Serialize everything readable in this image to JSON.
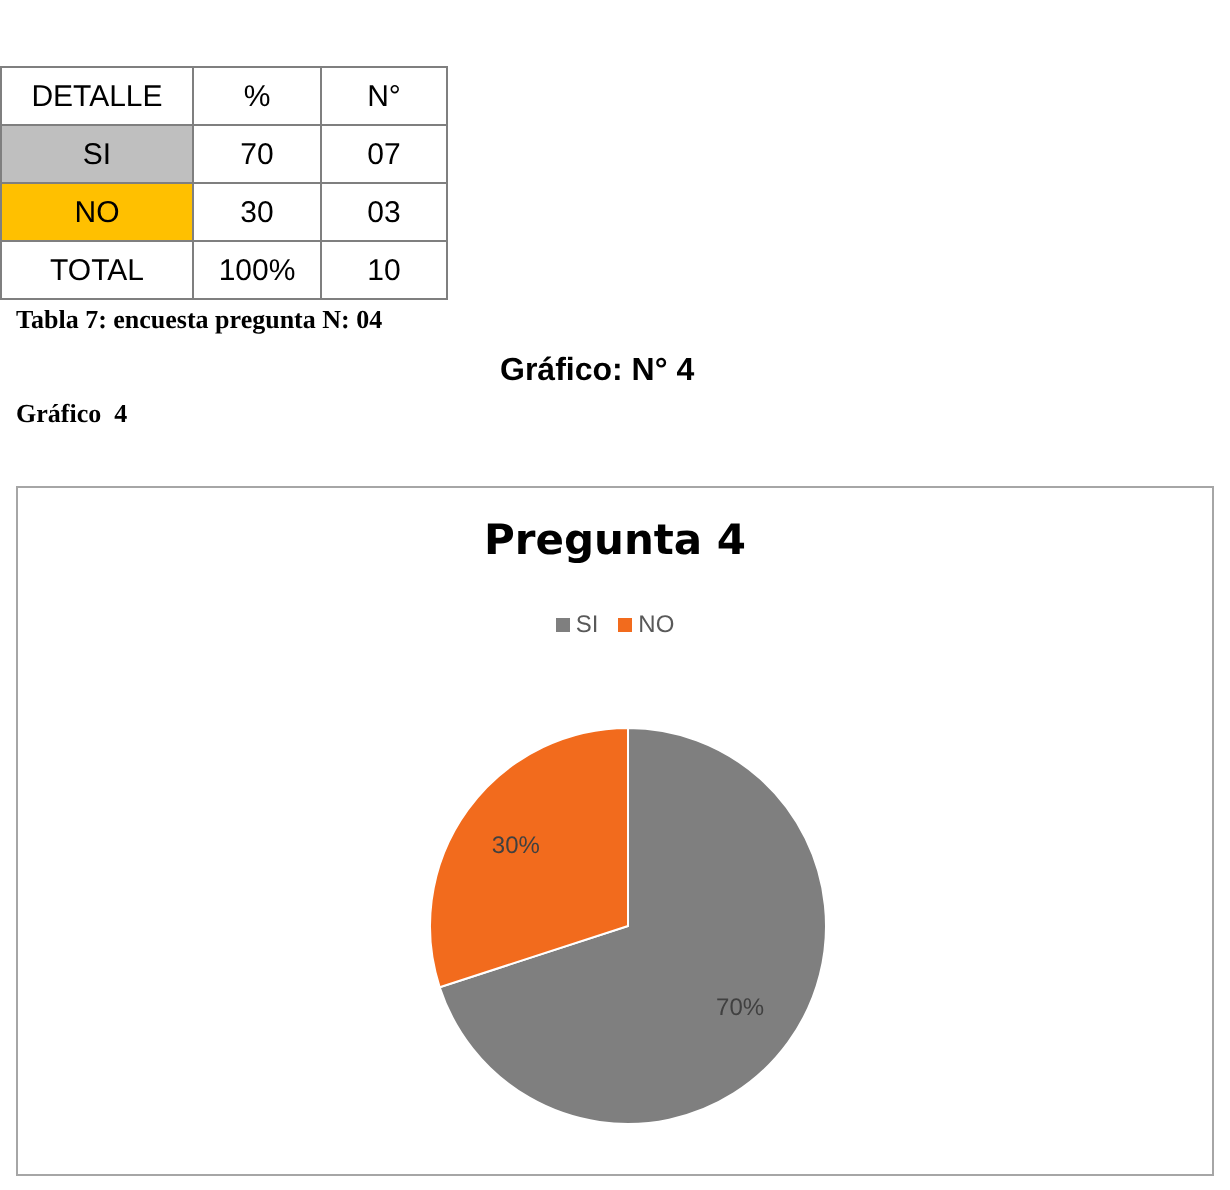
{
  "chart_data": [
    {
      "type": "other",
      "title": "Tabla 7: encuesta pregunta N: 04",
      "annotations": [
        "DETALLE",
        "%",
        "N°",
        "SI",
        "70",
        "07",
        "NO",
        "30",
        "03",
        "TOTAL",
        "100%",
        "10"
      ]
    },
    {
      "type": "pie",
      "title": "Pregunta 4",
      "annotations": [
        "Gráfico: N° 4",
        "Gráfico  4"
      ],
      "categories": [
        "SI",
        "NO"
      ],
      "values": [
        70,
        30
      ],
      "colors": [
        "#7f7f7f",
        "#f26b1d"
      ],
      "value_labels": [
        "70%",
        "30%"
      ],
      "legend": "top"
    }
  ]
}
